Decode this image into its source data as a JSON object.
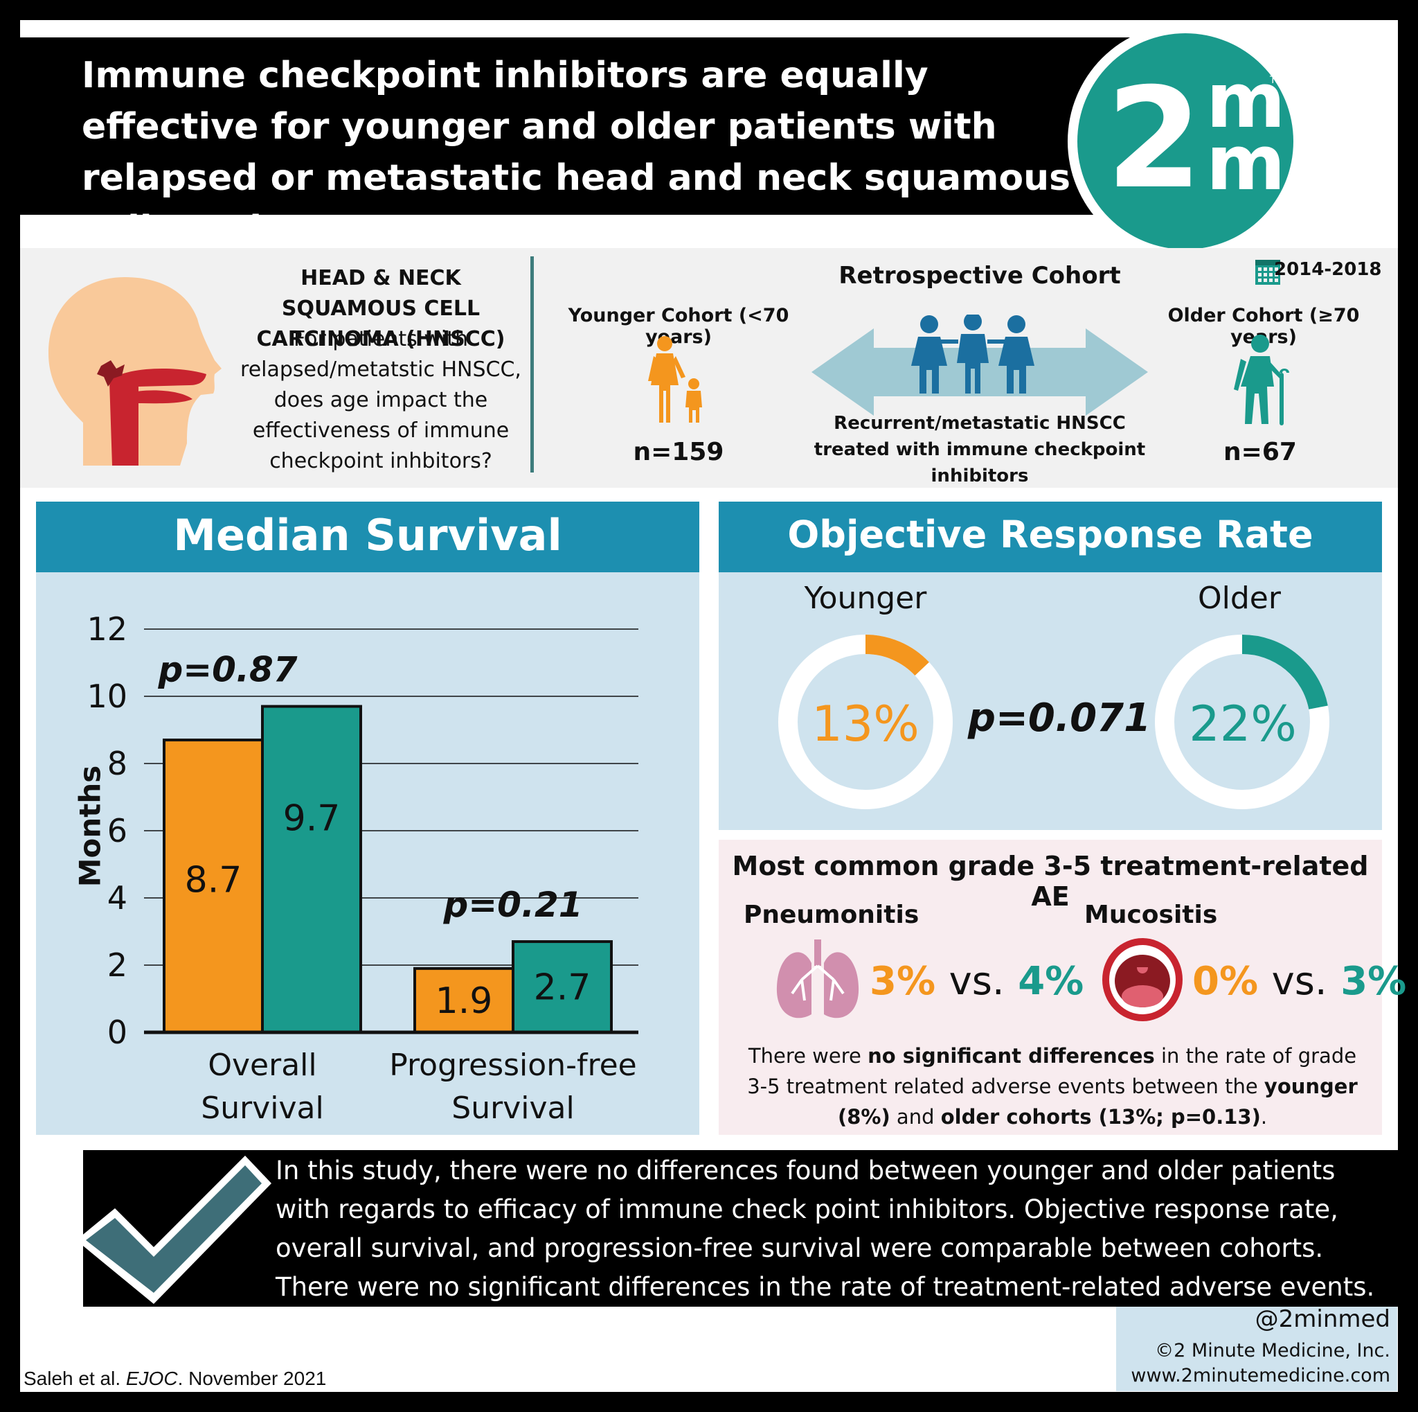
{
  "header": {
    "title": "Immune checkpoint inhibitors are equally effective for younger and older patients with relapsed or metastatic head and neck squamous cell carcinomas",
    "logo_digit": "2",
    "logo_m": "m",
    "logo_tm": "TM"
  },
  "study": {
    "condition_heading": "HEAD & NECK SQUAMOUS CELL CARCINOMA (HNSCC)",
    "question": "For patients with relapsed/metatstic HNSCC, does age impact the effectiveness of immune checkpoint inhbitors?",
    "design": "Retrospective Cohort",
    "years": "2014-2018",
    "younger_label": "Younger Cohort (<70 years)",
    "younger_n": "n=159",
    "older_label": "Older Cohort (≥70 years)",
    "older_n": "n=67",
    "population": "Recurrent/metastatic HNSCC treated with immune checkpoint inhibitors"
  },
  "colors": {
    "younger": "#f4961e",
    "older": "#1a9a8c",
    "panel_header": "#1d8fb0",
    "panel_bg": "#cfe3ee"
  },
  "median_survival": {
    "title": "Median Survival",
    "y_axis_label": "Months",
    "chart_data": {
      "type": "bar",
      "categories": [
        "Overall Survival",
        "Progression-free Survival"
      ],
      "series": [
        {
          "values": [
            8.7,
            1.9
          ]
        },
        {
          "values": [
            9.7,
            2.7
          ]
        }
      ],
      "ylim": [
        0,
        12
      ],
      "yticks": [
        "0",
        "2",
        "4",
        "6",
        "8",
        "10",
        "12"
      ],
      "value_labels": [
        [
          "8.7",
          "1.9"
        ],
        [
          "9.7",
          "2.7"
        ]
      ],
      "category_lines": [
        [
          "Overall",
          "Survival"
        ],
        [
          "Progression-free",
          "Survival"
        ]
      ],
      "p_values": [
        "p=0.87",
        "p=0.21"
      ],
      "grid": true
    }
  },
  "orr": {
    "title": "Objective Response Rate",
    "younger_label": "Younger",
    "older_label": "Older",
    "younger_value": 13,
    "older_value": 22,
    "younger_text": "13%",
    "older_text": "22%",
    "p_value": "p=0.071"
  },
  "adverse_events": {
    "title": "Most common grade 3-5 treatment-related AE",
    "pneumonitis_label": "Pneumonitis",
    "pneumonitis_young": "3%",
    "pneumonitis_old": "4%",
    "mucositis_label": "Mucositis",
    "mucositis_young": "0%",
    "mucositis_old": "3%",
    "vs": "vs.",
    "note_1": "There were ",
    "note_bold_1": "no significant differences",
    "note_2": " in the rate of grade 3-5 treatment related adverse events between the ",
    "note_bold_2": "younger (8%)",
    "note_3": " and ",
    "note_bold_3": "older cohorts (13%; p=0.13)",
    "note_4": "."
  },
  "conclusion": "In this study, there were no differences found between younger and older patients with regards to efficacy of immune check point inhibitors. Objective response rate, overall survival, and progression-free survival were comparable between cohorts. There were no significant differences in the rate of treatment-related adverse events.",
  "footer": {
    "handle": "@2minmed",
    "copyright": "©2 Minute Medicine, Inc.",
    "website": "www.2minutemedicine.com",
    "citation_authors": "Saleh et al. ",
    "citation_journal": "EJOC",
    "citation_date": ". November 2021"
  }
}
